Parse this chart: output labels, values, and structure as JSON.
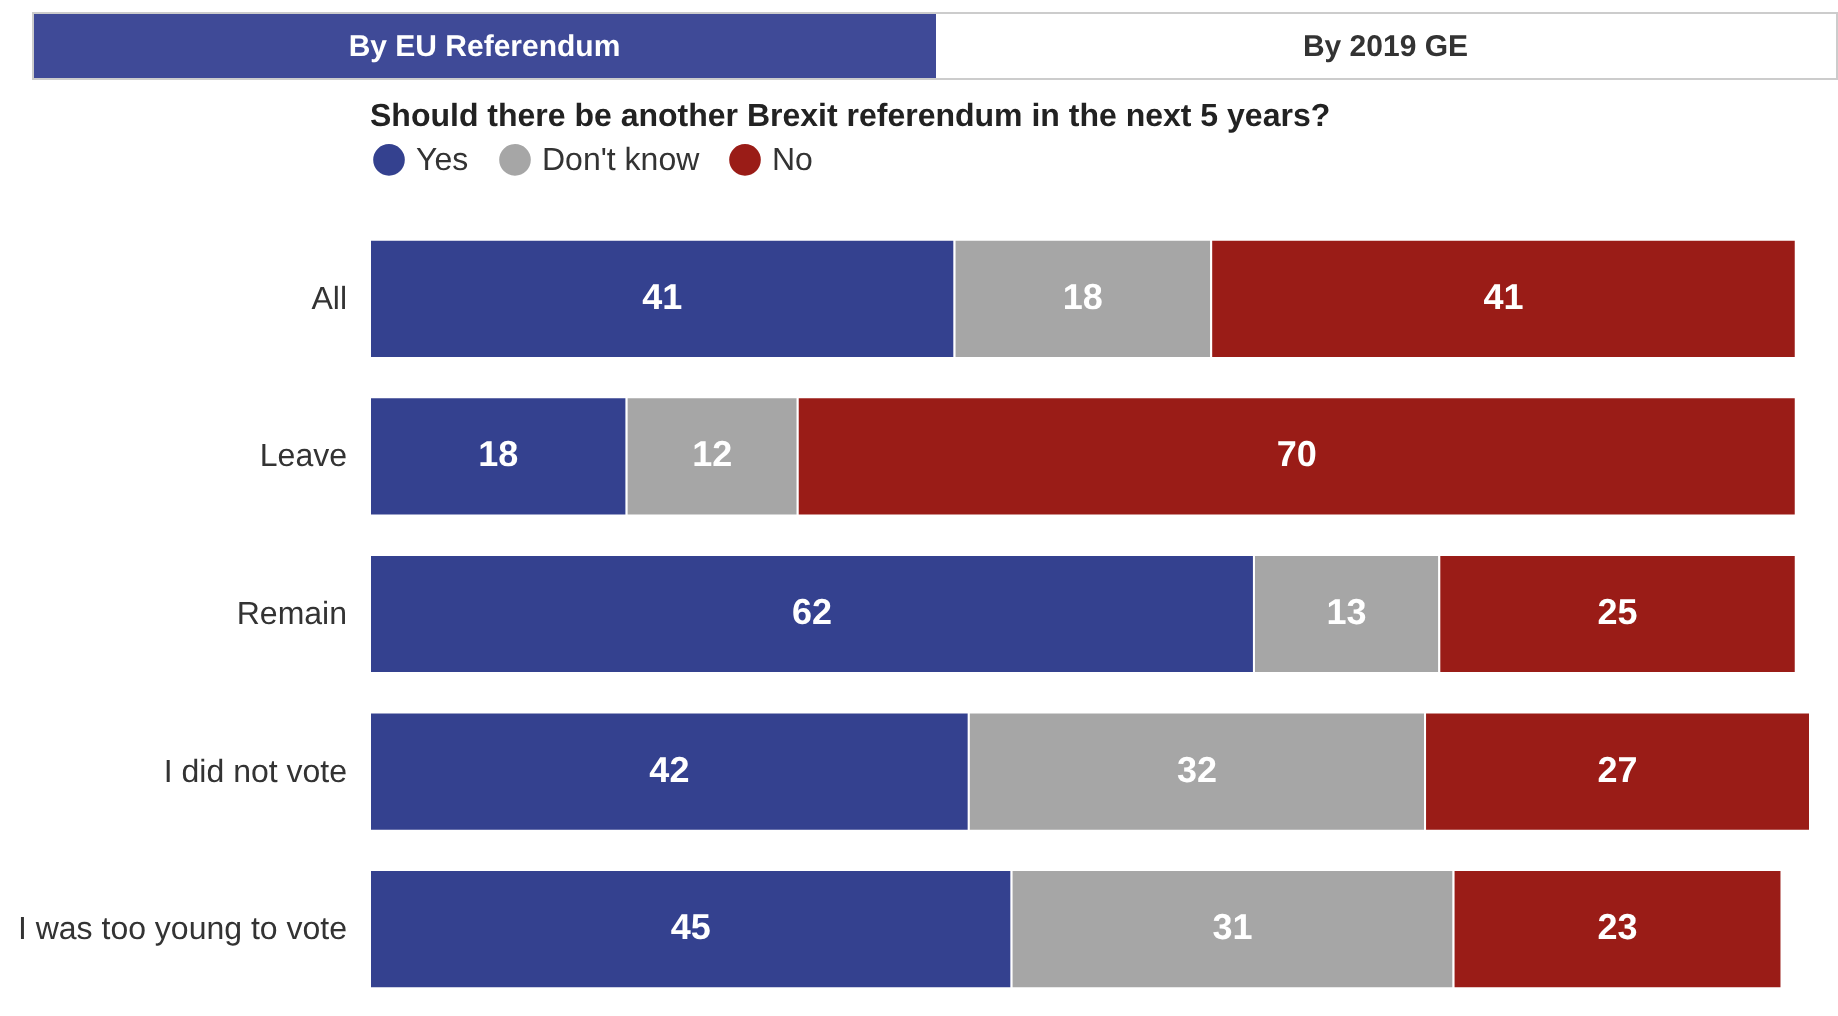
{
  "chart_data": {
    "type": "bar",
    "orientation": "horizontal",
    "stacked": true,
    "title": "Should there be another Brexit referendum in the next 5 years?",
    "annotations": [
      "By EU Referendum",
      "By 2019 GE"
    ],
    "categories": [
      "All",
      "Leave",
      "Remain",
      "I did not vote",
      "I was too young to vote"
    ],
    "series": [
      {
        "name": "Yes",
        "color": "#34418f",
        "values": [
          41,
          18,
          62,
          42,
          45
        ]
      },
      {
        "name": "Don't know",
        "color": "#a6a6a6",
        "values": [
          18,
          12,
          13,
          32,
          31
        ]
      },
      {
        "name": "No",
        "color": "#9a1c17",
        "values": [
          41,
          70,
          25,
          27,
          23
        ]
      }
    ],
    "data_labels": true,
    "legend": "top",
    "tick_labels": "y"
  }
}
